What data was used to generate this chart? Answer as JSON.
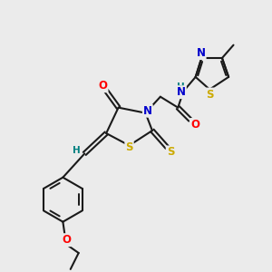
{
  "bg_color": "#ebebeb",
  "bond_color": "#1a1a1a",
  "bond_width": 1.5,
  "atom_colors": {
    "O": "#ff0000",
    "N": "#0000cc",
    "S": "#ccaa00",
    "H": "#008080",
    "C": "#1a1a1a"
  },
  "font_size": 8.5,
  "font_size_small": 7.5
}
